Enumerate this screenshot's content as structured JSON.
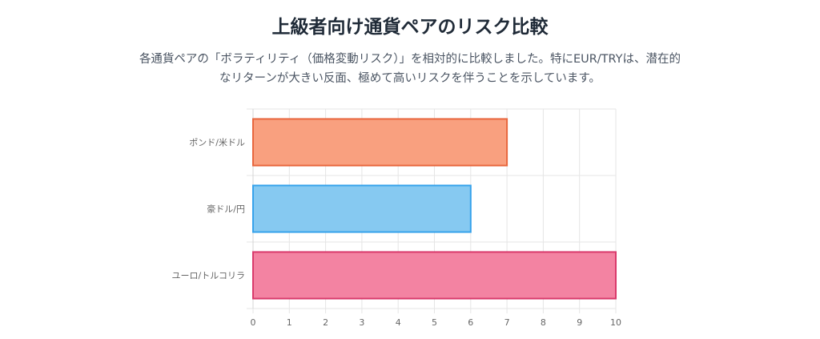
{
  "header": {
    "title": "上級者向け通貨ペアのリスク比較",
    "description": "各通貨ペアの「ボラティリティ（価格変動リスク）」を相対的に比較しました。特にEUR/TRYは、潜在的なリターンが大きい反面、極めて高いリスクを伴うことを示しています。"
  },
  "chart_data": {
    "type": "bar",
    "orientation": "horizontal",
    "categories": [
      "ポンド/米ドル",
      "豪ドル/円",
      "ユーロ/トルコリラ"
    ],
    "values": [
      7,
      6,
      10
    ],
    "xlim": [
      0,
      10
    ],
    "xticks": [
      "0",
      "1",
      "2",
      "3",
      "4",
      "5",
      "6",
      "7",
      "8",
      "9",
      "10"
    ],
    "grid": true,
    "legend": "none",
    "colors": [
      {
        "fill": "#f9a07f",
        "border": "#e8663d"
      },
      {
        "fill": "#86c9f1",
        "border": "#36a2eb"
      },
      {
        "fill": "#f383a2",
        "border": "#d9396b"
      }
    ]
  }
}
